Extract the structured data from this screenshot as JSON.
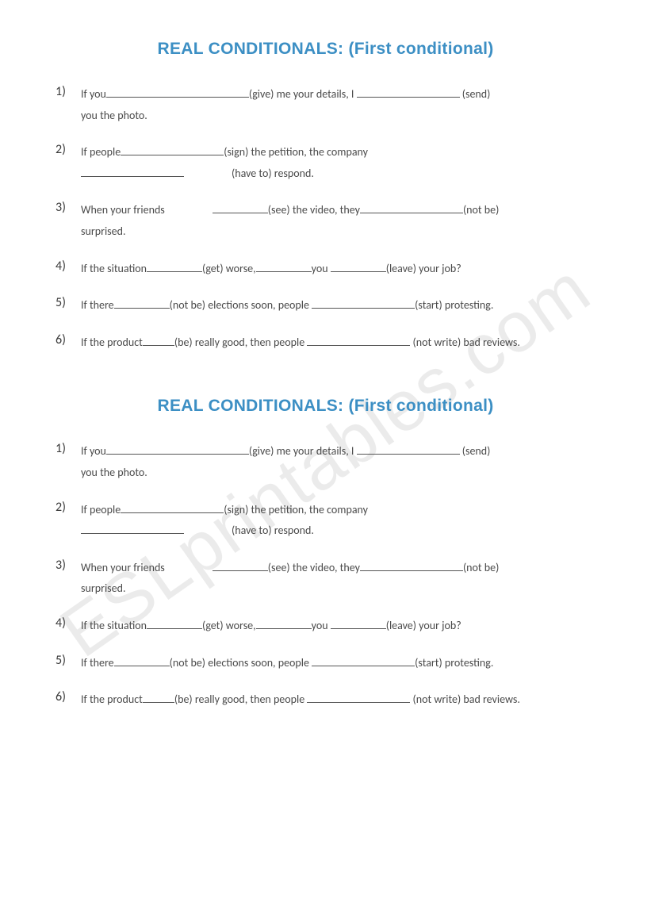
{
  "watermark": "ESLprintables.com",
  "title_color": "#3c8fc4",
  "text_color": "#4a4a4a",
  "background_color": "#ffffff",
  "sections": [
    {
      "title": "REAL CONDITIONALS:  (First conditional)",
      "items": [
        {
          "num": "1)",
          "t1": "If you",
          "h1": "(give)",
          "t2": " me your details, I ",
          "h2": "(send)",
          "t3": "you the photo."
        },
        {
          "num": "2)",
          "t1": "If people",
          "h1": "(sign)",
          "t2": " the petition, the company",
          "t3b": "",
          "h2": "(have to)",
          "t4": " respond."
        },
        {
          "num": "3)",
          "t1": "When your friends",
          "h1": "(see)",
          "t2": " the video, they",
          "h2": "(not be)",
          "t3": "surprised."
        },
        {
          "num": "4)",
          "t1": "If the situation",
          "h1": "(get)",
          "t2": " worse,",
          "t3": "you ",
          "h2": "(leave)",
          "t4": " your job?"
        },
        {
          "num": "5)",
          "t1": "If there",
          "h1": "(not be)",
          "t2": " elections soon, people ",
          "h2": "(start)",
          "t3": " protesting."
        },
        {
          "num": "6)",
          "t1": "If the product",
          "h1": "(be)",
          "t2": " really good, then people ",
          "h2": "(not write)",
          "t3": " bad reviews."
        }
      ]
    },
    {
      "title": "REAL CONDITIONALS:  (First conditional)",
      "items": [
        {
          "num": "1)",
          "t1": "If you",
          "h1": "(give)",
          "t2": " me your details, I ",
          "h2": "(send)",
          "t3": "you the photo."
        },
        {
          "num": "2)",
          "t1": "If people",
          "h1": "(sign)",
          "t2": " the petition, the company",
          "t3b": "",
          "h2": "(have to)",
          "t4": " respond."
        },
        {
          "num": "3)",
          "t1": "When your friends",
          "h1": "(see)",
          "t2": " the video, they",
          "h2": "(not be)",
          "t3": "surprised."
        },
        {
          "num": "4)",
          "t1": "If the situation",
          "h1": "(get)",
          "t2": " worse,",
          "t3": "you ",
          "h2": "(leave)",
          "t4": " your job?"
        },
        {
          "num": "5)",
          "t1": "If there",
          "h1": "(not be)",
          "t2": " elections soon, people ",
          "h2": "(start)",
          "t3": " protesting."
        },
        {
          "num": "6)",
          "t1": "If the product",
          "h1": "(be)",
          "t2": " really good, then people ",
          "h2": "(not write)",
          "t3": " bad reviews."
        }
      ]
    }
  ]
}
